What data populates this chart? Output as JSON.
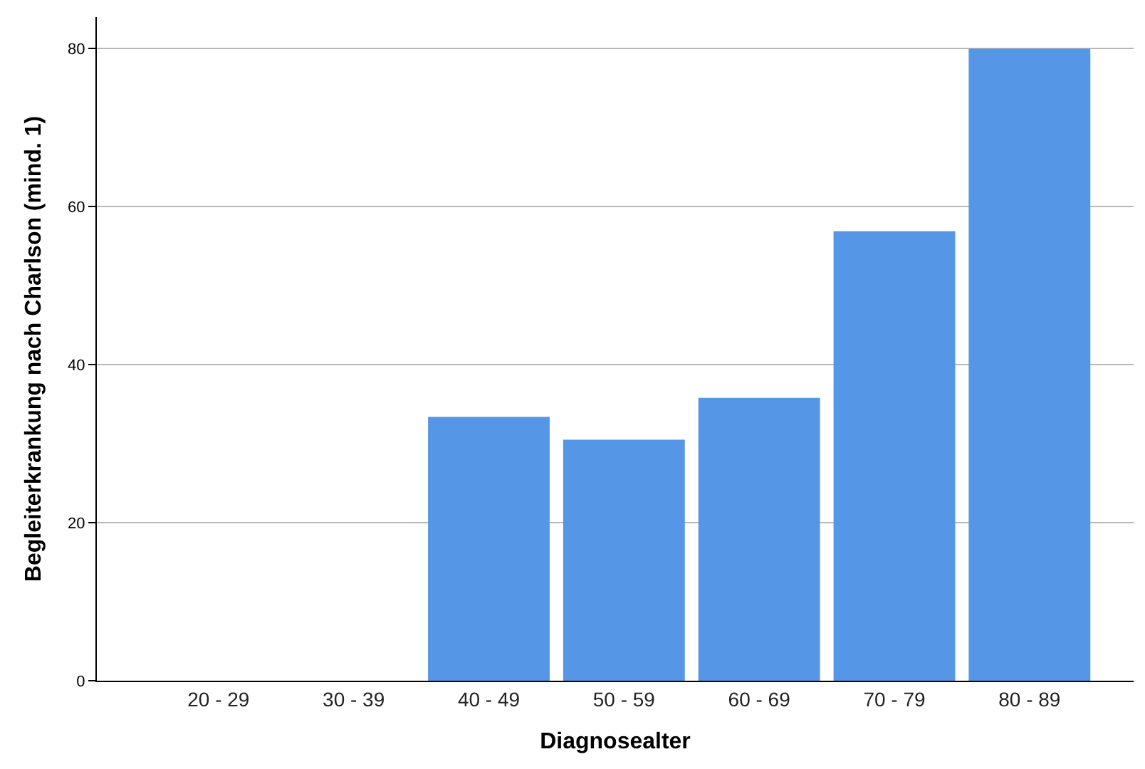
{
  "chart_data": {
    "type": "bar",
    "xlabel": "Diagnosealter",
    "ylabel": "Begleiterkrankung nach Charlson (mind. 1)",
    "categories": [
      "20 - 29",
      "30 - 39",
      "40 - 49",
      "50 - 59",
      "60 - 69",
      "70 - 79",
      "80 - 89"
    ],
    "values": [
      0,
      0,
      33.4,
      30.5,
      35.8,
      56.9,
      80
    ],
    "color": "#5596e6",
    "ylim": [
      0,
      84
    ],
    "yticks": [
      0,
      20,
      40,
      60,
      80
    ],
    "grid": "y"
  }
}
